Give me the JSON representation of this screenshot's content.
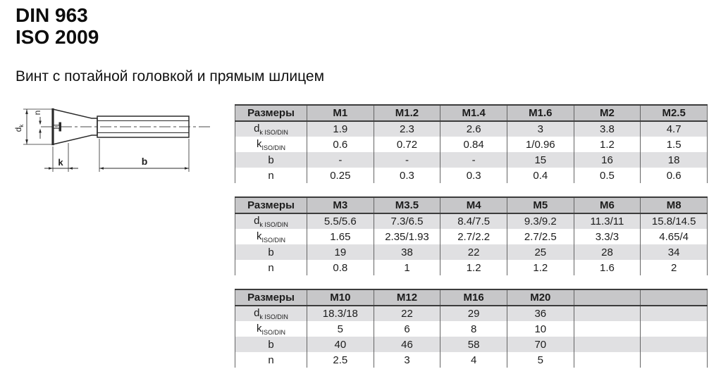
{
  "page": {
    "standard_1": "DIN 963",
    "standard_2": "ISO 2009",
    "subtitle": "Винт с потайной головкой и прямым шлицем"
  },
  "drawing": {
    "description": "countersunk-slotted-screw-side-view",
    "labels": {
      "d_main": "d",
      "d_sub": "k",
      "n": "n",
      "k": "k",
      "b": "b"
    }
  },
  "colors": {
    "table_header_bg": "#c7c7c9",
    "row_stripe_bg": "#e0e0e2",
    "border_dark": "#3c3c3c",
    "grid_line": "#646464",
    "text": "#1c1c1c"
  },
  "tables": [
    {
      "header_label": "Размеры",
      "columns": [
        "M1",
        "M1.2",
        "M1.4",
        "M1.6",
        "M2",
        "M2.5"
      ],
      "rows": [
        {
          "label": {
            "main": "d",
            "sub": "k ISO/DIN"
          },
          "values": [
            "1.9",
            "2.3",
            "2.6",
            "3",
            "3.8",
            "4.7"
          ]
        },
        {
          "label": {
            "main": "k",
            "sub": "ISO/DIN"
          },
          "values": [
            "0.6",
            "0.72",
            "0.84",
            "1/0.96",
            "1.2",
            "1.5"
          ]
        },
        {
          "label": {
            "main": "b",
            "sub": ""
          },
          "values": [
            "-",
            "-",
            "-",
            "15",
            "16",
            "18"
          ]
        },
        {
          "label": {
            "main": "n",
            "sub": ""
          },
          "values": [
            "0.25",
            "0.3",
            "0.3",
            "0.4",
            "0.5",
            "0.6"
          ]
        }
      ]
    },
    {
      "header_label": "Размеры",
      "columns": [
        "M3",
        "M3.5",
        "M4",
        "M5",
        "M6",
        "M8"
      ],
      "rows": [
        {
          "label": {
            "main": "d",
            "sub": "k ISO/DIN"
          },
          "values": [
            "5.5/5.6",
            "7.3/6.5",
            "8.4/7.5",
            "9.3/9.2",
            "11.3/11",
            "15.8/14.5"
          ]
        },
        {
          "label": {
            "main": "k",
            "sub": "ISO/DIN"
          },
          "values": [
            "1.65",
            "2.35/1.93",
            "2.7/2.2",
            "2.7/2.5",
            "3.3/3",
            "4.65/4"
          ]
        },
        {
          "label": {
            "main": "b",
            "sub": ""
          },
          "values": [
            "19",
            "38",
            "22",
            "25",
            "28",
            "34"
          ]
        },
        {
          "label": {
            "main": "n",
            "sub": ""
          },
          "values": [
            "0.8",
            "1",
            "1.2",
            "1.2",
            "1.6",
            "2"
          ]
        }
      ]
    },
    {
      "header_label": "Размеры",
      "columns": [
        "M10",
        "M12",
        "M16",
        "M20",
        "",
        ""
      ],
      "rows": [
        {
          "label": {
            "main": "d",
            "sub": "k ISO/DIN"
          },
          "values": [
            "18.3/18",
            "22",
            "29",
            "36",
            "",
            ""
          ]
        },
        {
          "label": {
            "main": "k",
            "sub": "ISO/DIN"
          },
          "values": [
            "5",
            "6",
            "8",
            "10",
            "",
            ""
          ]
        },
        {
          "label": {
            "main": "b",
            "sub": ""
          },
          "values": [
            "40",
            "46",
            "58",
            "70",
            "",
            ""
          ]
        },
        {
          "label": {
            "main": "n",
            "sub": ""
          },
          "values": [
            "2.5",
            "3",
            "4",
            "5",
            "",
            ""
          ]
        }
      ]
    }
  ]
}
